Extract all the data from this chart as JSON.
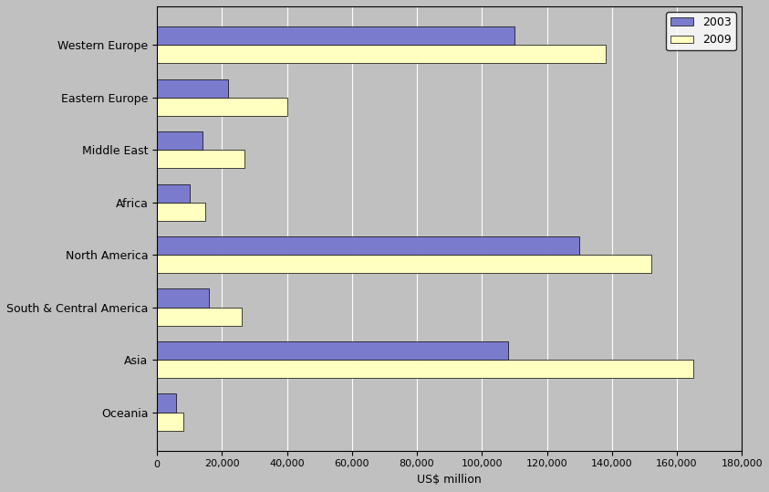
{
  "categories": [
    "Western Europe",
    "Eastern Europe",
    "Middle East",
    "Africa",
    "North America",
    "South & Central America",
    "Asia",
    "Oceania"
  ],
  "values_2003": [
    110000,
    22000,
    14000,
    10000,
    130000,
    16000,
    108000,
    6000
  ],
  "values_2009": [
    138000,
    40000,
    27000,
    15000,
    152000,
    26000,
    165000,
    8000
  ],
  "color_2003": "#7b7bce",
  "color_2009": "#ffffc0",
  "bar_edge_color": "#000000",
  "background_color": "#c0c0c0",
  "plot_bg_color": "#c0c0c0",
  "xlabel": "US$ million",
  "xlim": [
    0,
    180000
  ],
  "xtick_interval": 20000,
  "legend_labels": [
    "2003",
    "2009"
  ],
  "grid_color": "#ffffff",
  "bar_linewidth": 0.5
}
